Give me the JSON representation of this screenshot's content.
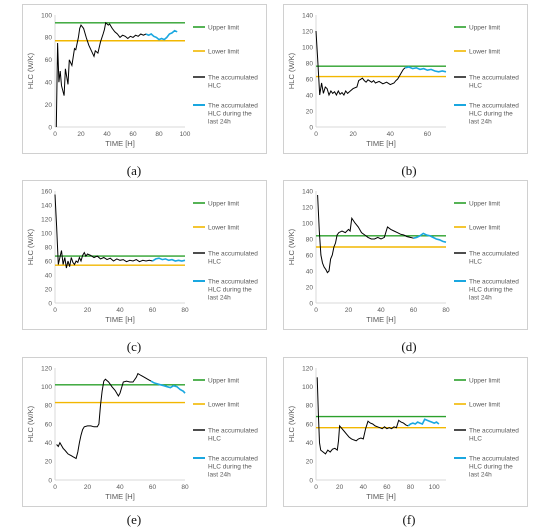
{
  "legend": {
    "upper": "Upper limit",
    "lower": "Lower limit",
    "accumulated": [
      "The accumulated",
      "HLC"
    ],
    "last24": [
      "The accumulated",
      "HLC during the",
      "last 24h"
    ]
  },
  "colors": {
    "upper": "#2ca02c",
    "lower": "#f2b700",
    "accumulated": "#000000",
    "last24": "#1aa7e0",
    "axis": "#d9d9d9",
    "tick": "#595959"
  },
  "chart_data": [
    {
      "caption": "(a)",
      "type": "line",
      "xlabel": "TIME [H]",
      "ylabel": "HLC (W/K)",
      "xlim": [
        0,
        100
      ],
      "ylim": [
        0,
        100
      ],
      "xticks": [
        0,
        20,
        40,
        60,
        80,
        100
      ],
      "yticks": [
        0,
        20,
        40,
        60,
        80,
        100
      ],
      "upper_limit": 93,
      "lower_limit": 77,
      "accumulated": [
        [
          1,
          0
        ],
        [
          2,
          75
        ],
        [
          3,
          40
        ],
        [
          4,
          50
        ],
        [
          5,
          37
        ],
        [
          7,
          28
        ],
        [
          8,
          52
        ],
        [
          10,
          38
        ],
        [
          11,
          60
        ],
        [
          13,
          55
        ],
        [
          15,
          70
        ],
        [
          16,
          69
        ],
        [
          18,
          80
        ],
        [
          19,
          88
        ],
        [
          20,
          91
        ],
        [
          22,
          88
        ],
        [
          24,
          80
        ],
        [
          26,
          73
        ],
        [
          28,
          68
        ],
        [
          30,
          63
        ],
        [
          31,
          68
        ],
        [
          33,
          66
        ],
        [
          35,
          76
        ],
        [
          37,
          83
        ],
        [
          38,
          87
        ],
        [
          39,
          93
        ],
        [
          41,
          91
        ],
        [
          42,
          92
        ],
        [
          44,
          88
        ],
        [
          46,
          85
        ],
        [
          48,
          83
        ],
        [
          50,
          80
        ],
        [
          52,
          82
        ],
        [
          54,
          81
        ],
        [
          56,
          79
        ],
        [
          58,
          81
        ],
        [
          60,
          80
        ],
        [
          62,
          82
        ],
        [
          64,
          81
        ],
        [
          66,
          83
        ],
        [
          68,
          82
        ],
        [
          70,
          83
        ]
      ],
      "last24": [
        [
          70,
          83
        ],
        [
          72,
          82
        ],
        [
          74,
          83
        ],
        [
          76,
          81
        ],
        [
          78,
          80
        ],
        [
          80,
          78
        ],
        [
          82,
          79
        ],
        [
          84,
          78
        ],
        [
          86,
          80
        ],
        [
          88,
          83
        ],
        [
          90,
          84
        ],
        [
          92,
          86
        ],
        [
          94,
          85
        ]
      ]
    },
    {
      "caption": "(b)",
      "type": "line",
      "xlabel": "TIME [H]",
      "ylabel": "HLC (W/K)",
      "xlim": [
        0,
        70
      ],
      "ylim": [
        0,
        140
      ],
      "xticks": [
        0,
        20,
        40,
        60
      ],
      "yticks": [
        0,
        20,
        40,
        60,
        80,
        100,
        120,
        140
      ],
      "upper_limit": 76,
      "lower_limit": 63,
      "accumulated": [
        [
          0,
          120
        ],
        [
          1,
          80
        ],
        [
          2,
          40
        ],
        [
          3,
          55
        ],
        [
          4,
          42
        ],
        [
          5,
          50
        ],
        [
          6,
          48
        ],
        [
          7,
          40
        ],
        [
          8,
          45
        ],
        [
          9,
          42
        ],
        [
          10,
          44
        ],
        [
          11,
          40
        ],
        [
          12,
          45
        ],
        [
          13,
          41
        ],
        [
          14,
          43
        ],
        [
          15,
          40
        ],
        [
          16,
          45
        ],
        [
          17,
          42
        ],
        [
          18,
          44
        ],
        [
          20,
          48
        ],
        [
          22,
          50
        ],
        [
          23,
          58
        ],
        [
          25,
          61
        ],
        [
          26,
          58
        ],
        [
          27,
          56
        ],
        [
          28,
          59
        ],
        [
          30,
          56
        ],
        [
          31,
          58
        ],
        [
          32,
          55
        ],
        [
          34,
          57
        ],
        [
          36,
          54
        ],
        [
          38,
          56
        ],
        [
          40,
          53
        ],
        [
          42,
          55
        ],
        [
          43,
          58
        ],
        [
          44,
          60
        ],
        [
          45,
          64
        ],
        [
          46,
          68
        ],
        [
          47,
          72
        ],
        [
          48,
          74
        ]
      ],
      "last24": [
        [
          48,
          74
        ],
        [
          50,
          75
        ],
        [
          52,
          73
        ],
        [
          54,
          74
        ],
        [
          56,
          72
        ],
        [
          58,
          73
        ],
        [
          60,
          71
        ],
        [
          62,
          72
        ],
        [
          64,
          70
        ],
        [
          66,
          69
        ],
        [
          68,
          70
        ],
        [
          70,
          69
        ]
      ]
    },
    {
      "caption": "(c)",
      "type": "line",
      "xlabel": "TIME [H]",
      "ylabel": "HLC (W/K)",
      "xlim": [
        0,
        80
      ],
      "ylim": [
        0,
        160
      ],
      "xticks": [
        0,
        20,
        40,
        60,
        80
      ],
      "yticks": [
        0,
        20,
        40,
        60,
        80,
        100,
        120,
        140,
        160
      ],
      "upper_limit": 67,
      "lower_limit": 54,
      "accumulated": [
        [
          0,
          155
        ],
        [
          1,
          110
        ],
        [
          2,
          55
        ],
        [
          3,
          65
        ],
        [
          4,
          75
        ],
        [
          5,
          55
        ],
        [
          6,
          65
        ],
        [
          7,
          50
        ],
        [
          8,
          60
        ],
        [
          9,
          52
        ],
        [
          10,
          65
        ],
        [
          11,
          58
        ],
        [
          12,
          55
        ],
        [
          13,
          60
        ],
        [
          14,
          58
        ],
        [
          15,
          65
        ],
        [
          16,
          60
        ],
        [
          17,
          68
        ],
        [
          18,
          72
        ],
        [
          19,
          67
        ],
        [
          20,
          70
        ],
        [
          22,
          68
        ],
        [
          24,
          65
        ],
        [
          26,
          67
        ],
        [
          28,
          63
        ],
        [
          30,
          65
        ],
        [
          32,
          62
        ],
        [
          34,
          64
        ],
        [
          36,
          60
        ],
        [
          38,
          63
        ],
        [
          40,
          61
        ],
        [
          42,
          62
        ],
        [
          44,
          59
        ],
        [
          46,
          61
        ],
        [
          48,
          60
        ],
        [
          50,
          62
        ],
        [
          52,
          59
        ],
        [
          54,
          61
        ],
        [
          56,
          60
        ],
        [
          58,
          61
        ],
        [
          60,
          60
        ]
      ],
      "last24": [
        [
          60,
          60
        ],
        [
          62,
          63
        ],
        [
          64,
          64
        ],
        [
          66,
          62
        ],
        [
          68,
          63
        ],
        [
          70,
          61
        ],
        [
          72,
          62
        ],
        [
          74,
          60
        ],
        [
          76,
          61
        ],
        [
          78,
          60
        ],
        [
          80,
          61
        ]
      ]
    },
    {
      "caption": "(d)",
      "type": "line",
      "xlabel": "TIME [H]",
      "ylabel": "HLC (W/K)",
      "xlim": [
        0,
        80
      ],
      "ylim": [
        0,
        140
      ],
      "xticks": [
        0,
        20,
        40,
        60,
        80
      ],
      "yticks": [
        0,
        20,
        40,
        60,
        80,
        100,
        120,
        140
      ],
      "upper_limit": 84,
      "lower_limit": 70,
      "accumulated": [
        [
          1,
          135
        ],
        [
          2,
          90
        ],
        [
          3,
          60
        ],
        [
          4,
          50
        ],
        [
          5,
          45
        ],
        [
          6,
          42
        ],
        [
          7,
          38
        ],
        [
          8,
          40
        ],
        [
          9,
          55
        ],
        [
          10,
          60
        ],
        [
          11,
          70
        ],
        [
          12,
          75
        ],
        [
          13,
          85
        ],
        [
          14,
          88
        ],
        [
          16,
          90
        ],
        [
          18,
          88
        ],
        [
          20,
          92
        ],
        [
          21,
          90
        ],
        [
          22,
          106
        ],
        [
          24,
          100
        ],
        [
          26,
          95
        ],
        [
          28,
          88
        ],
        [
          30,
          85
        ],
        [
          32,
          82
        ],
        [
          34,
          80
        ],
        [
          36,
          80
        ],
        [
          38,
          82
        ],
        [
          40,
          80
        ],
        [
          42,
          82
        ],
        [
          44,
          95
        ],
        [
          46,
          92
        ],
        [
          48,
          90
        ],
        [
          50,
          88
        ],
        [
          52,
          86
        ],
        [
          54,
          85
        ],
        [
          56,
          83
        ],
        [
          58,
          82
        ],
        [
          60,
          81
        ]
      ],
      "last24": [
        [
          60,
          81
        ],
        [
          62,
          82
        ],
        [
          64,
          84
        ],
        [
          66,
          87
        ],
        [
          68,
          85
        ],
        [
          70,
          84
        ],
        [
          72,
          82
        ],
        [
          74,
          80
        ],
        [
          76,
          79
        ],
        [
          78,
          77
        ],
        [
          80,
          76
        ]
      ]
    },
    {
      "caption": "(e)",
      "type": "line",
      "xlabel": "TIME [H]",
      "ylabel": "HLC (W/K)",
      "xlim": [
        0,
        80
      ],
      "ylim": [
        0,
        120
      ],
      "xticks": [
        0,
        20,
        40,
        60,
        80
      ],
      "yticks": [
        0,
        20,
        40,
        60,
        80,
        100,
        120
      ],
      "upper_limit": 102,
      "lower_limit": 83,
      "accumulated": [
        [
          1,
          38
        ],
        [
          2,
          36
        ],
        [
          3,
          40
        ],
        [
          4,
          37
        ],
        [
          5,
          34
        ],
        [
          6,
          32
        ],
        [
          7,
          30
        ],
        [
          8,
          28
        ],
        [
          9,
          27
        ],
        [
          10,
          26
        ],
        [
          11,
          25
        ],
        [
          12,
          24
        ],
        [
          13,
          23
        ],
        [
          14,
          30
        ],
        [
          15,
          40
        ],
        [
          16,
          48
        ],
        [
          17,
          54
        ],
        [
          18,
          57
        ],
        [
          20,
          58
        ],
        [
          22,
          58
        ],
        [
          24,
          57
        ],
        [
          26,
          57
        ],
        [
          27,
          60
        ],
        [
          28,
          80
        ],
        [
          29,
          95
        ],
        [
          30,
          106
        ],
        [
          31,
          108
        ],
        [
          33,
          105
        ],
        [
          35,
          100
        ],
        [
          37,
          96
        ],
        [
          39,
          90
        ],
        [
          40,
          93
        ],
        [
          42,
          105
        ],
        [
          44,
          106
        ],
        [
          46,
          105
        ],
        [
          48,
          105
        ],
        [
          50,
          110
        ],
        [
          51,
          114
        ],
        [
          53,
          112
        ],
        [
          55,
          110
        ],
        [
          57,
          108
        ],
        [
          59,
          106
        ]
      ],
      "last24": [
        [
          59,
          106
        ],
        [
          61,
          104
        ],
        [
          63,
          103
        ],
        [
          65,
          102
        ],
        [
          67,
          101
        ],
        [
          69,
          100
        ],
        [
          71,
          99
        ],
        [
          73,
          101
        ],
        [
          75,
          100
        ],
        [
          77,
          97
        ],
        [
          79,
          95
        ],
        [
          80,
          93
        ]
      ]
    },
    {
      "caption": "(f)",
      "type": "line",
      "xlabel": "TIME [H]",
      "ylabel": "HLC (W/K)",
      "xlim": [
        0,
        110
      ],
      "ylim": [
        0,
        120
      ],
      "xticks": [
        0,
        20,
        40,
        60,
        80,
        100
      ],
      "yticks": [
        0,
        20,
        40,
        60,
        80,
        100,
        120
      ],
      "upper_limit": 68,
      "lower_limit": 56,
      "accumulated": [
        [
          1,
          110
        ],
        [
          2,
          70
        ],
        [
          3,
          40
        ],
        [
          4,
          32
        ],
        [
          6,
          30
        ],
        [
          8,
          28
        ],
        [
          10,
          32
        ],
        [
          12,
          30
        ],
        [
          14,
          33
        ],
        [
          16,
          34
        ],
        [
          18,
          32
        ],
        [
          19,
          42
        ],
        [
          20,
          58
        ],
        [
          22,
          55
        ],
        [
          24,
          52
        ],
        [
          26,
          49
        ],
        [
          28,
          46
        ],
        [
          30,
          44
        ],
        [
          32,
          43
        ],
        [
          34,
          42
        ],
        [
          36,
          44
        ],
        [
          38,
          45
        ],
        [
          40,
          44
        ],
        [
          42,
          55
        ],
        [
          44,
          63
        ],
        [
          46,
          61
        ],
        [
          48,
          60
        ],
        [
          50,
          58
        ],
        [
          52,
          57
        ],
        [
          54,
          56
        ],
        [
          56,
          55
        ],
        [
          58,
          57
        ],
        [
          60,
          55
        ],
        [
          62,
          56
        ],
        [
          64,
          55
        ],
        [
          66,
          57
        ],
        [
          68,
          56
        ],
        [
          70,
          64
        ],
        [
          72,
          62
        ],
        [
          74,
          61
        ],
        [
          76,
          59
        ],
        [
          78,
          58
        ]
      ],
      "last24": [
        [
          78,
          58
        ],
        [
          80,
          60
        ],
        [
          82,
          61
        ],
        [
          84,
          60
        ],
        [
          86,
          62
        ],
        [
          88,
          61
        ],
        [
          90,
          60
        ],
        [
          92,
          65
        ],
        [
          94,
          64
        ],
        [
          96,
          63
        ],
        [
          98,
          62
        ],
        [
          100,
          61
        ],
        [
          102,
          62
        ],
        [
          104,
          60
        ]
      ]
    }
  ]
}
